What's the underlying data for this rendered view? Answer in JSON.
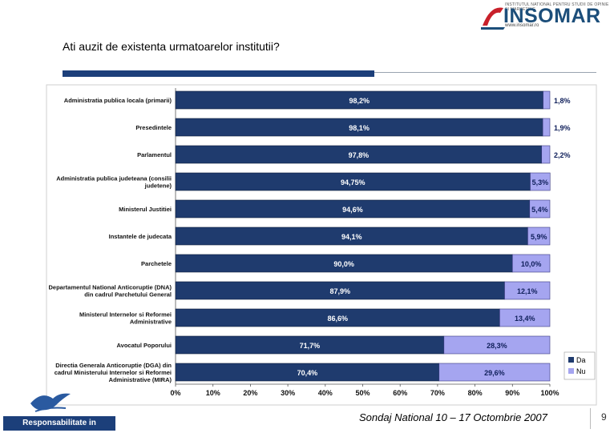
{
  "header": {
    "logo_small_text": "INSTITUTUL NATIONAL PENTRU STUDII DE OPINIE SI MARKETING",
    "logo_name": "INSOMAR",
    "logo_url": "www.insomar.ro",
    "title": "Ati auzit de existenta urmatoarelor institutii?"
  },
  "colors": {
    "da": "#1f3b6e",
    "nu": "#a5a5f0",
    "rule": "#1c3f7a",
    "logo_accent": "#c8202a"
  },
  "chart_data": {
    "type": "bar",
    "orientation": "horizontal",
    "stacked": true,
    "categories": [
      "Administratia publica locala (primarii)",
      "Presedintele",
      "Parlamentul",
      "Administratia publica judeteana  (consilii judetene)",
      "Ministerul Justitiei",
      "Instantele de judecata",
      "Parchetele",
      "Departamentul National Anticoruptie (DNA) din cadrul Parchetului General",
      "Ministerul Internelor si Reformei Administrative",
      "Avocatul Poporului",
      "Directia Generala Anticoruptie (DGA) din cadrul Ministerului Internelor si Reformei Administrative (MIRA)"
    ],
    "series": [
      {
        "name": "Da",
        "values": [
          98.2,
          98.1,
          97.8,
          94.75,
          94.6,
          94.1,
          90.0,
          87.9,
          86.6,
          71.7,
          70.4
        ],
        "labels": [
          "98,2%",
          "98,1%",
          "97,8%",
          "94,75%",
          "94,6%",
          "94,1%",
          "90,0%",
          "87,9%",
          "86,6%",
          "71,7%",
          "70,4%"
        ]
      },
      {
        "name": "Nu",
        "values": [
          1.8,
          1.9,
          2.2,
          5.3,
          5.4,
          5.9,
          10.0,
          12.1,
          13.4,
          28.3,
          29.6
        ],
        "labels": [
          "1,8%",
          "1,9%",
          "2,2%",
          "5,3%",
          "5,4%",
          "5,9%",
          "10,0%",
          "12,1%",
          "13,4%",
          "28,3%",
          "29,6%"
        ]
      }
    ],
    "xlim": [
      0,
      100
    ],
    "xticks": [
      "0%",
      "10%",
      "20%",
      "30%",
      "40%",
      "50%",
      "60%",
      "70%",
      "80%",
      "90%",
      "100%"
    ],
    "grid": false,
    "legend": "bottom-right"
  },
  "footer": {
    "left_text": "Responsabilitate in Democratie",
    "center_text": "Sondaj National 10 – 17 Octombrie  2007",
    "page_number": "9"
  }
}
